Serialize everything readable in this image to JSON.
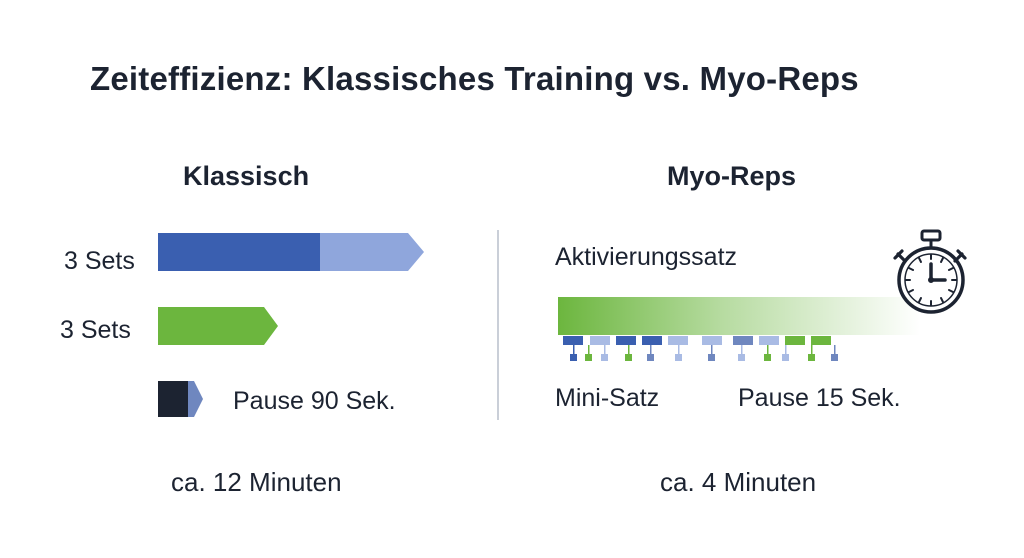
{
  "title": "Zeiteffizienz: Klassisches Training vs. Myo-Reps",
  "left": {
    "heading": "Klassisch",
    "row1_label": "3 Sets",
    "row2_label": "3 Sets",
    "pause_label": "Pause 90 Sek.",
    "total": "ca. 12 Minuten"
  },
  "right": {
    "heading": "Myo-Reps",
    "activation_label": "Aktivierungssatz",
    "mini_label": "Mini-Satz",
    "pause_label": "Pause 15 Sek.",
    "total": "ca. 4 Minuten",
    "icon": "stopwatch-icon"
  },
  "colors": {
    "blue_dark": "#3a5fb0",
    "blue_light": "#8fa6dc",
    "green": "#6cb63e",
    "navy": "#1c2331",
    "divider": "#b9bfcc"
  }
}
